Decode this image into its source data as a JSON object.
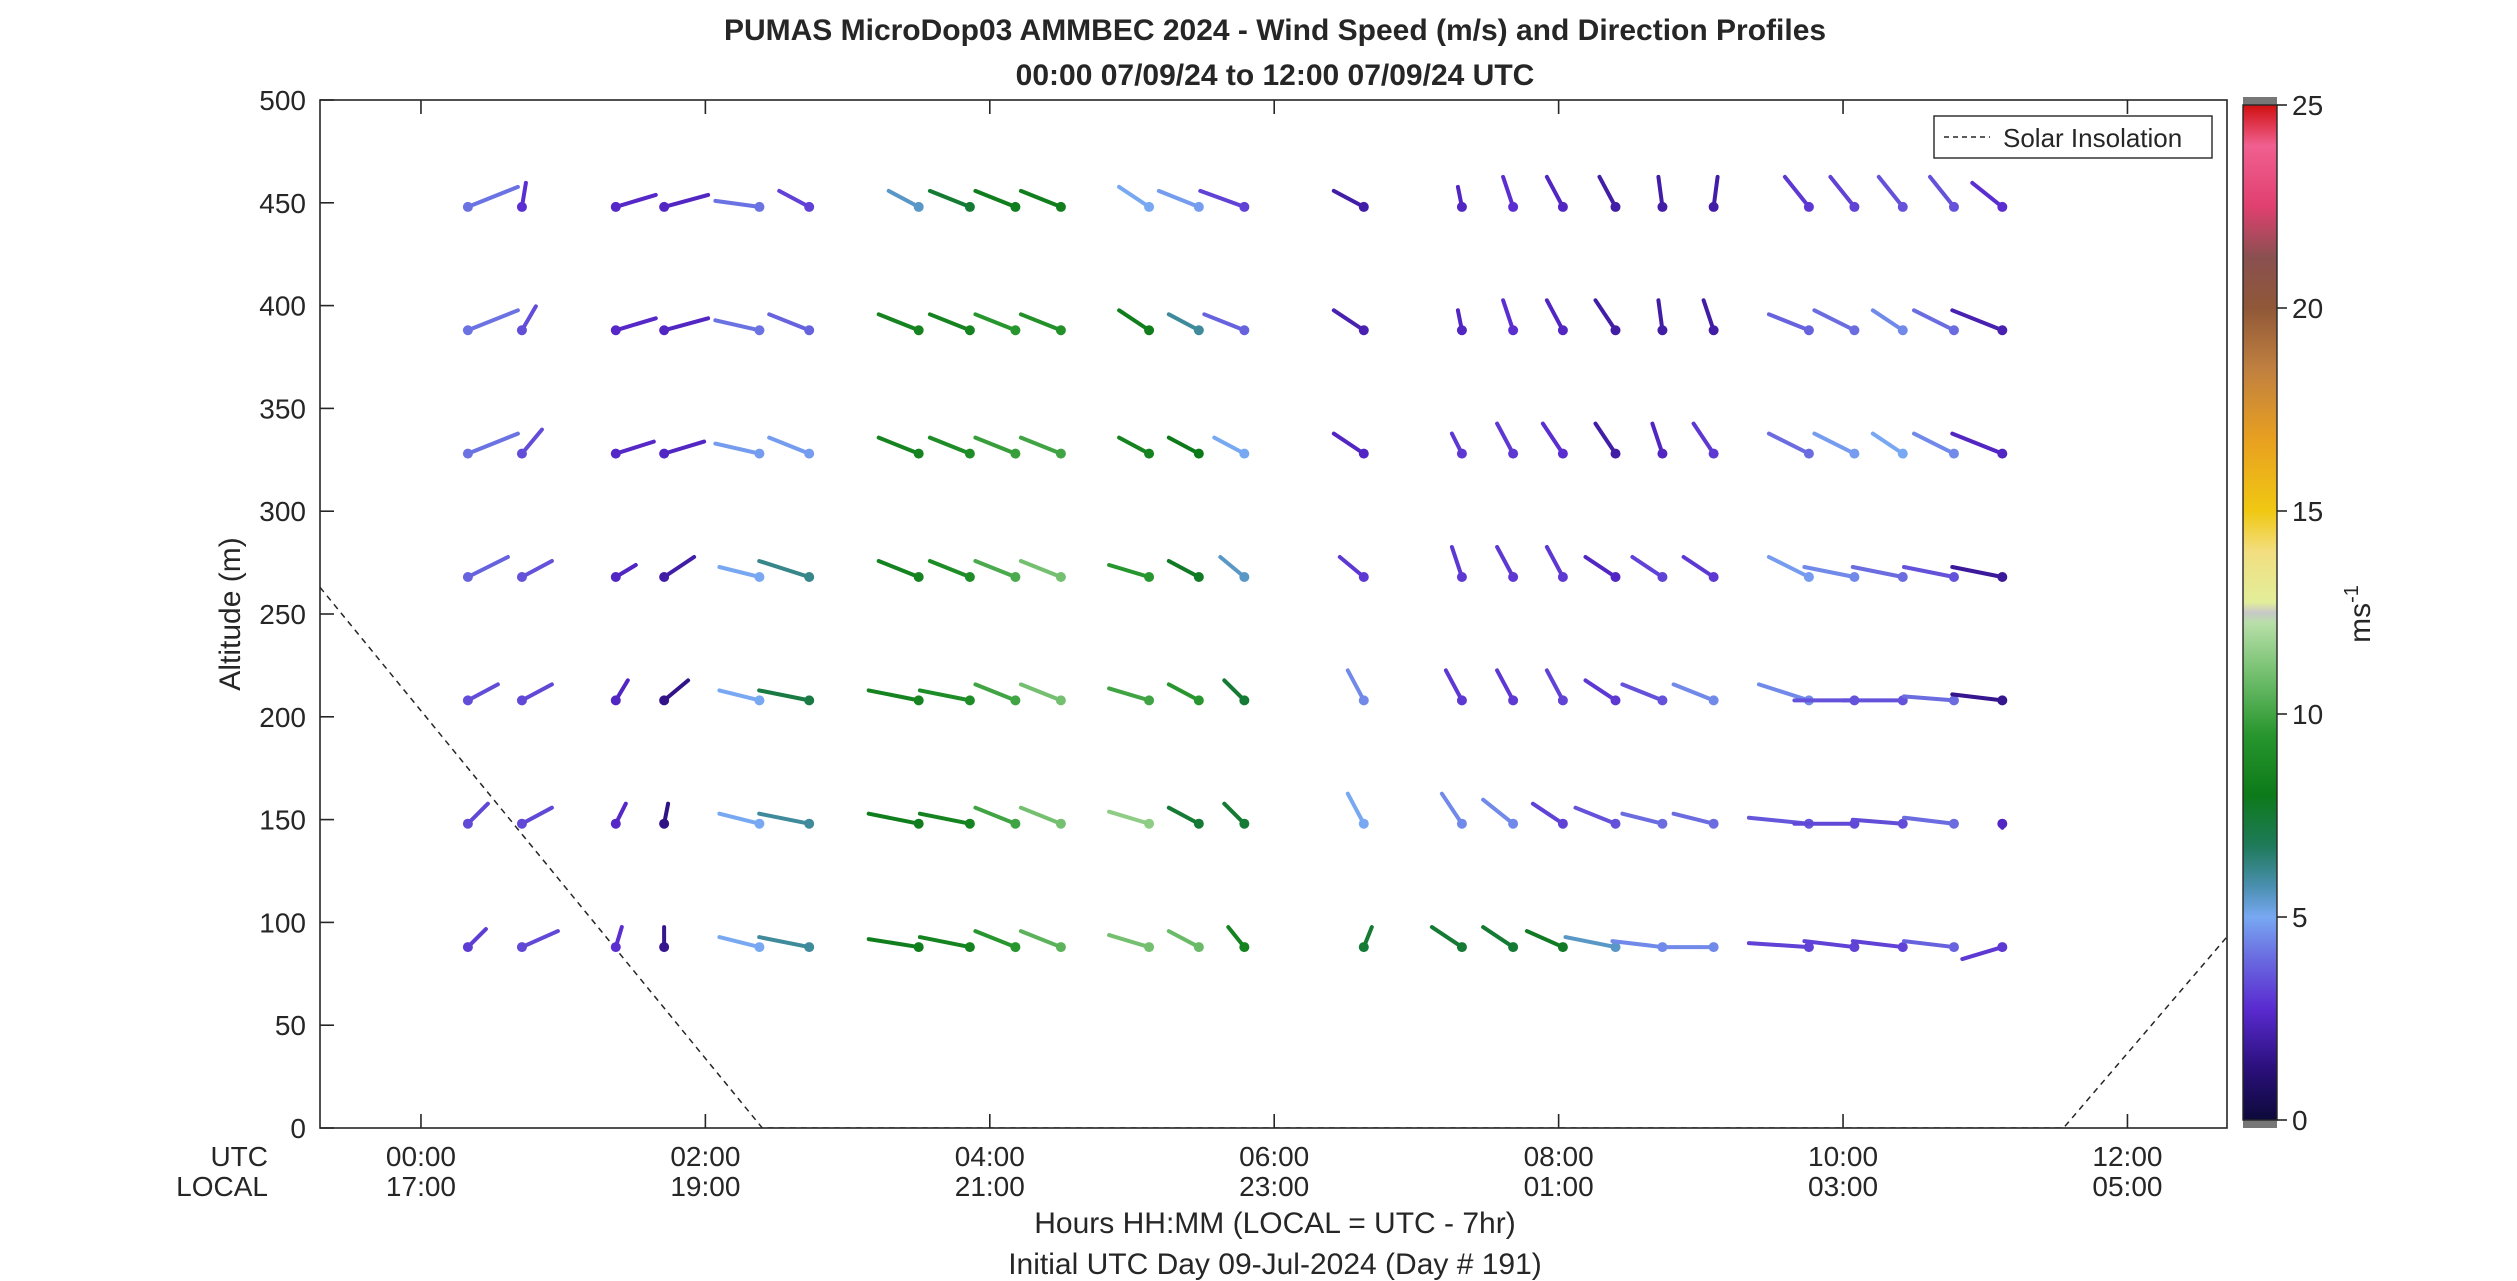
{
  "chart_data": {
    "type": "wind-barb-profile",
    "title": "PUMAS MicroDop03 AMMBEC 2024 - Wind Speed (m/s) and Direction Profiles",
    "subtitle": "00:00 07/09/24 to 12:00 07/09/24  UTC",
    "xlabel": "Hours HH:MM  (LOCAL = UTC - 7hr)",
    "xlabel2": "Initial UTC Day 09-Jul-2024 (Day # 191)",
    "ylabel": "Altitude (m)",
    "utc_row_label": "UTC",
    "local_row_label": "LOCAL",
    "x_ticks_utc_hours": [
      0,
      2,
      4,
      6,
      8,
      10,
      12
    ],
    "x_ticks_utc": [
      "00:00",
      "02:00",
      "04:00",
      "06:00",
      "08:00",
      "10:00",
      "12:00"
    ],
    "x_ticks_local": [
      "17:00",
      "19:00",
      "21:00",
      "23:00",
      "01:00",
      "03:00",
      "05:00"
    ],
    "xlim_hours": [
      -0.71,
      12.7
    ],
    "ylim": [
      0,
      500
    ],
    "y_ticks": [
      0,
      50,
      100,
      150,
      200,
      250,
      300,
      350,
      400,
      450,
      500
    ],
    "colorbar": {
      "label": "ms",
      "label_exponent": "-1",
      "range": [
        0,
        25
      ],
      "ticks": [
        0,
        5,
        10,
        15,
        20,
        25
      ],
      "ticks_labels": [
        "0",
        "5",
        "10",
        "15",
        "20",
        "25"
      ]
    },
    "legend": {
      "entries": [
        "Solar Insolation"
      ],
      "position": "top-right",
      "style": "dashed"
    },
    "solar_insolation": {
      "x_hours": [
        -0.71,
        2.4,
        11.55,
        12.7
      ],
      "y": [
        263,
        0,
        0,
        93
      ]
    },
    "altitudes": [
      88,
      148,
      208,
      268,
      328,
      388,
      448
    ],
    "profiles": [
      {
        "t": 0.33,
        "u": [
          0.9,
          1.0,
          1.5,
          2.0,
          2.5,
          2.5,
          2.5
        ],
        "v": [
          0.9,
          1.0,
          0.8,
          1.0,
          1.0,
          1.0,
          1.0
        ],
        "s": [
          3.1,
          3.3,
          3.4,
          3.8,
          4.1,
          4.1,
          4.1
        ]
      },
      {
        "t": 0.71,
        "u": [
          1.8,
          1.5,
          1.5,
          1.5,
          1.0,
          0.7,
          0.2
        ],
        "v": [
          0.8,
          0.8,
          0.8,
          0.8,
          1.2,
          1.2,
          1.2
        ],
        "s": [
          3.3,
          3.3,
          3.3,
          3.5,
          3.4,
          3.4,
          2.8
        ]
      },
      {
        "t": 1.37,
        "u": [
          0.3,
          0.5,
          0.6,
          1.0,
          1.9,
          2.0,
          2.0
        ],
        "v": [
          1.0,
          1.0,
          1.0,
          0.6,
          0.6,
          0.6,
          0.6
        ],
        "s": [
          2.8,
          2.6,
          2.5,
          2.5,
          2.6,
          2.6,
          2.6
        ]
      },
      {
        "t": 1.71,
        "u": [
          0.0,
          0.2,
          1.2,
          1.5,
          2.0,
          2.2,
          2.2
        ],
        "v": [
          1.0,
          1.0,
          1.0,
          1.0,
          0.6,
          0.6,
          0.6
        ],
        "s": [
          1.6,
          1.4,
          1.5,
          2.0,
          2.5,
          2.5,
          2.5
        ]
      },
      {
        "t": 2.38,
        "u": [
          -2.0,
          -2.0,
          -2.0,
          -2.0,
          -2.2,
          -2.2,
          -2.2
        ],
        "v": [
          0.5,
          0.5,
          0.5,
          0.5,
          0.5,
          0.5,
          0.3
        ],
        "s": [
          5.0,
          5.0,
          5.0,
          5.0,
          4.8,
          4.1,
          4.1
        ]
      },
      {
        "t": 2.73,
        "u": [
          -2.5,
          -2.5,
          -2.5,
          -2.5,
          -2.0,
          -2.0,
          -1.5
        ],
        "v": [
          0.5,
          0.5,
          0.5,
          0.8,
          0.8,
          0.8,
          0.8
        ],
        "s": [
          6.0,
          6.0,
          7.2,
          6.2,
          4.8,
          3.8,
          3.2
        ]
      },
      {
        "t": 3.5,
        "u": [
          -2.5,
          -2.5,
          -2.5,
          -2.0,
          -2.0,
          -2.0,
          -1.5
        ],
        "v": [
          0.4,
          0.5,
          0.5,
          0.8,
          0.8,
          0.8,
          0.8
        ],
        "s": [
          8.2,
          8.2,
          8.5,
          8.5,
          8.5,
          8.5,
          5.5
        ]
      },
      {
        "t": 3.86,
        "u": [
          -2.5,
          -2.5,
          -2.5,
          -2.0,
          -2.0,
          -2.0,
          -2.0
        ],
        "v": [
          0.5,
          0.5,
          0.5,
          0.8,
          0.8,
          0.8,
          0.8
        ],
        "s": [
          8.5,
          8.5,
          9.0,
          9.0,
          9.0,
          8.5,
          7.5
        ]
      },
      {
        "t": 4.18,
        "u": [
          -2.0,
          -2.0,
          -2.0,
          -2.0,
          -2.0,
          -2.0,
          -2.0
        ],
        "v": [
          0.8,
          0.8,
          0.8,
          0.8,
          0.8,
          0.8,
          0.8
        ],
        "s": [
          9.5,
          10.0,
          10.0,
          10.2,
          9.8,
          9.5,
          8.2
        ]
      },
      {
        "t": 4.5,
        "u": [
          -2.0,
          -2.0,
          -2.0,
          -2.0,
          -2.0,
          -2.0,
          -2.0
        ],
        "v": [
          0.8,
          0.8,
          0.8,
          0.8,
          0.8,
          0.8,
          0.8
        ],
        "s": [
          10.5,
          11.0,
          11.0,
          11.0,
          10.0,
          9.2,
          8.2
        ]
      },
      {
        "t": 5.12,
        "u": [
          -2.0,
          -2.0,
          -2.0,
          -2.0,
          -1.5,
          -1.5,
          -1.5
        ],
        "v": [
          0.6,
          0.6,
          0.6,
          0.6,
          0.8,
          1.0,
          1.0
        ],
        "s": [
          11.0,
          11.5,
          10.0,
          9.5,
          8.5,
          8.2,
          5.0
        ]
      },
      {
        "t": 5.47,
        "u": [
          -1.5,
          -1.5,
          -1.5,
          -1.5,
          -1.5,
          -1.5,
          -2.0
        ],
        "v": [
          0.8,
          0.8,
          0.8,
          0.8,
          0.8,
          0.8,
          0.8
        ],
        "s": [
          10.8,
          7.5,
          9.5,
          7.8,
          8.0,
          6.0,
          4.8
        ]
      },
      {
        "t": 5.79,
        "u": [
          -0.8,
          -1.0,
          -1.0,
          -1.2,
          -1.5,
          -2.0,
          -2.2
        ],
        "v": [
          1.0,
          1.0,
          1.0,
          1.0,
          0.8,
          0.8,
          0.8
        ],
        "s": [
          8.5,
          7.5,
          7.5,
          5.5,
          5.0,
          3.8,
          3.2
        ]
      },
      {
        "t": 6.63,
        "u": [
          0.4,
          -0.8,
          -0.8,
          -1.2,
          -1.5,
          -1.5,
          -1.5
        ],
        "v": [
          1.0,
          1.5,
          1.5,
          1.0,
          1.0,
          1.0,
          0.8
        ],
        "s": [
          7.5,
          5.0,
          4.5,
          3.0,
          2.5,
          2.2,
          2.0
        ]
      },
      {
        "t": 7.32,
        "u": [
          -1.5,
          -1.0,
          -0.8,
          -0.5,
          -0.5,
          -0.2,
          -0.2
        ],
        "v": [
          1.0,
          1.5,
          1.5,
          1.5,
          1.0,
          1.0,
          1.0
        ],
        "s": [
          7.5,
          4.5,
          3.0,
          3.0,
          3.0,
          2.5,
          2.5
        ]
      },
      {
        "t": 7.68,
        "u": [
          -1.5,
          -1.5,
          -0.8,
          -0.8,
          -0.8,
          -0.5,
          -0.5
        ],
        "v": [
          1.0,
          1.2,
          1.5,
          1.5,
          1.5,
          1.5,
          1.5
        ],
        "s": [
          7.5,
          4.5,
          3.0,
          3.0,
          3.0,
          2.8,
          2.8
        ]
      },
      {
        "t": 8.03,
        "u": [
          -1.8,
          -1.5,
          -0.8,
          -0.8,
          -1.0,
          -0.8,
          -0.8
        ],
        "v": [
          0.8,
          1.0,
          1.5,
          1.5,
          1.5,
          1.5,
          1.5
        ],
        "s": [
          7.8,
          3.2,
          3.2,
          3.0,
          2.8,
          2.5,
          2.5
        ]
      },
      {
        "t": 8.4,
        "u": [
          -2.5,
          -2.0,
          -1.5,
          -1.5,
          -1.0,
          -1.0,
          -0.8
        ],
        "v": [
          0.5,
          0.8,
          1.0,
          1.0,
          1.5,
          1.5,
          1.5
        ],
        "s": [
          5.5,
          3.5,
          3.0,
          2.5,
          2.0,
          2.0,
          2.0
        ]
      },
      {
        "t": 8.73,
        "u": [
          -2.5,
          -2.0,
          -2.0,
          -1.5,
          -0.5,
          -0.2,
          -0.2
        ],
        "v": [
          0.3,
          0.5,
          0.8,
          1.0,
          1.5,
          1.5,
          1.5
        ],
        "s": [
          4.5,
          4.0,
          3.5,
          3.2,
          2.5,
          2.0,
          2.0
        ]
      },
      {
        "t": 9.09,
        "u": [
          -2.5,
          -2.0,
          -2.0,
          -1.5,
          -1.0,
          -0.5,
          0.2
        ],
        "v": [
          0.0,
          0.5,
          0.8,
          1.0,
          1.5,
          1.5,
          1.5
        ],
        "s": [
          4.5,
          4.0,
          4.5,
          3.0,
          3.0,
          2.0,
          2.0
        ]
      },
      {
        "t": 9.76,
        "u": [
          -3.0,
          -3.0,
          -2.5,
          -2.0,
          -2.0,
          -2.0,
          -1.2
        ],
        "v": [
          0.2,
          0.3,
          0.8,
          1.0,
          1.0,
          0.8,
          1.5
        ],
        "s": [
          3.2,
          3.6,
          4.5,
          4.8,
          4.0,
          3.8,
          3.0
        ]
      },
      {
        "t": 10.08,
        "u": [
          -2.5,
          -3.0,
          -3.0,
          -2.5,
          -2.0,
          -2.0,
          -1.2
        ],
        "v": [
          0.3,
          0.0,
          0.0,
          0.5,
          1.0,
          1.0,
          1.5
        ],
        "s": [
          3.2,
          3.3,
          3.5,
          4.5,
          4.8,
          4.0,
          3.2
        ]
      },
      {
        "t": 10.42,
        "u": [
          -2.5,
          -2.5,
          -3.0,
          -2.5,
          -1.5,
          -1.5,
          -1.2
        ],
        "v": [
          0.3,
          0.2,
          0.0,
          0.5,
          1.0,
          1.0,
          1.5
        ],
        "s": [
          3.2,
          3.4,
          3.5,
          4.0,
          5.0,
          4.5,
          3.5
        ]
      },
      {
        "t": 10.78,
        "u": [
          -2.5,
          -2.5,
          -2.5,
          -2.5,
          -2.0,
          -2.0,
          -1.2
        ],
        "v": [
          0.3,
          0.3,
          0.2,
          0.5,
          1.0,
          1.0,
          1.5
        ],
        "s": [
          3.8,
          4.0,
          4.0,
          3.5,
          4.5,
          4.0,
          3.5
        ]
      },
      {
        "t": 11.12,
        "u": [
          -2.0,
          0.0,
          -2.5,
          -2.5,
          -2.5,
          -2.5,
          -1.5
        ],
        "v": [
          -0.6,
          -0.2,
          0.3,
          0.5,
          1.0,
          1.0,
          1.2
        ],
        "s": [
          3.0,
          2.5,
          1.6,
          1.8,
          2.5,
          2.2,
          2.8
        ]
      }
    ]
  }
}
